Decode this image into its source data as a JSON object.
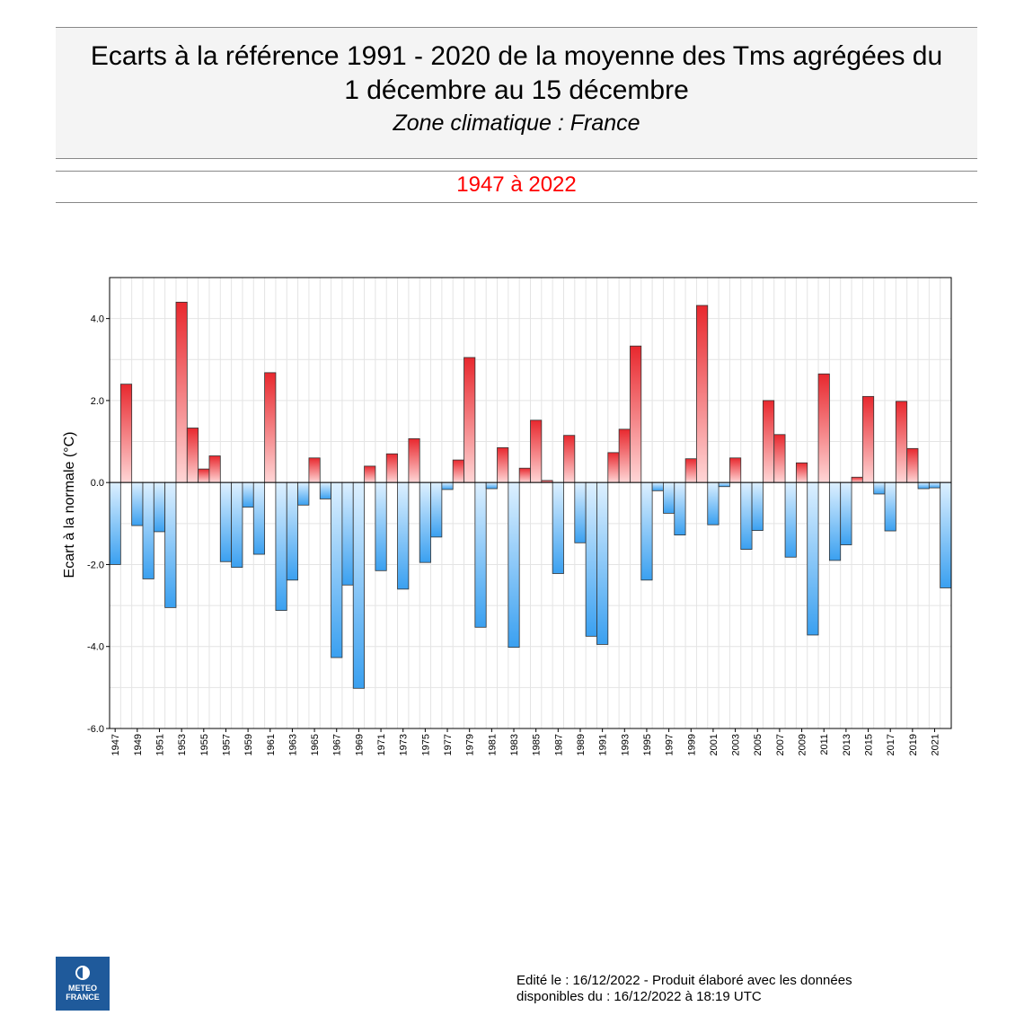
{
  "header": {
    "title_line1": "Ecarts à la référence 1991 - 2020 de la moyenne des Tms agrégées du",
    "title_line2": "1 décembre au 15 décembre",
    "subtitle": "Zone climatique : France",
    "period": "1947 à 2022"
  },
  "chart_data": {
    "type": "bar",
    "title": "Ecarts à la référence 1991 - 2020 de la moyenne des Tms agrégées du 1 décembre au 15 décembre",
    "ylabel": "Ecart à la normale (°C)",
    "xlabel": "",
    "ylim": [
      -6,
      5
    ],
    "yticks": [
      "4.0",
      "2.0",
      "0.0",
      "-2.0",
      "-4.0",
      "-6.0"
    ],
    "grid": true,
    "categories": [
      "1947",
      "1948",
      "1949",
      "1950",
      "1951",
      "1952",
      "1953",
      "1954",
      "1955",
      "1956",
      "1957",
      "1958",
      "1959",
      "1960",
      "1961",
      "1962",
      "1963",
      "1964",
      "1965",
      "1966",
      "1967",
      "1968",
      "1969",
      "1970",
      "1971",
      "1972",
      "1973",
      "1974",
      "1975",
      "1976",
      "1977",
      "1978",
      "1979",
      "1980",
      "1981",
      "1982",
      "1983",
      "1984",
      "1985",
      "1986",
      "1987",
      "1988",
      "1989",
      "1990",
      "1991",
      "1992",
      "1993",
      "1994",
      "1995",
      "1996",
      "1997",
      "1998",
      "1999",
      "2000",
      "2001",
      "2002",
      "2003",
      "2004",
      "2005",
      "2006",
      "2007",
      "2008",
      "2009",
      "2010",
      "2011",
      "2012",
      "2013",
      "2014",
      "2015",
      "2016",
      "2017",
      "2018",
      "2019",
      "2020",
      "2021",
      "2022"
    ],
    "xtick_labels": [
      "1947",
      "1949",
      "1951",
      "1953",
      "1955",
      "1957",
      "1959",
      "1961",
      "1963",
      "1965",
      "1967",
      "1969",
      "1971",
      "1973",
      "1975",
      "1977",
      "1979",
      "1981",
      "1983",
      "1985",
      "1987",
      "1989",
      "1991",
      "1993",
      "1995",
      "1997",
      "1999",
      "2001",
      "2003",
      "2005",
      "2007",
      "2009",
      "2011",
      "2013",
      "2015",
      "2017",
      "2019",
      "2021"
    ],
    "values": [
      -2.0,
      2.4,
      -1.05,
      -2.35,
      -1.2,
      -3.05,
      4.4,
      1.33,
      0.33,
      0.65,
      -1.93,
      -2.07,
      -0.6,
      -1.75,
      2.68,
      -3.12,
      -2.38,
      -0.55,
      0.6,
      -0.4,
      -4.27,
      -2.5,
      -5.02,
      0.4,
      -2.15,
      0.7,
      -2.6,
      1.07,
      -1.95,
      -1.33,
      -0.17,
      0.55,
      3.05,
      -3.53,
      -0.15,
      0.85,
      -4.02,
      0.35,
      1.52,
      0.05,
      -2.22,
      1.15,
      -1.47,
      -3.75,
      -3.95,
      0.73,
      1.3,
      3.33,
      -2.38,
      -0.2,
      -0.75,
      -1.28,
      0.58,
      4.32,
      -1.03,
      -0.1,
      0.6,
      -1.63,
      -1.17,
      2.0,
      1.17,
      -1.82,
      0.48,
      -3.72,
      2.65,
      -1.9,
      -1.52,
      0.13,
      2.1,
      -0.28,
      -1.18,
      1.98,
      0.83,
      -0.15,
      -0.13,
      -2.57
    ],
    "colors": {
      "positive": "#e8282e",
      "negative": "#3aa0f0",
      "positive_light": "#ffd6d6",
      "negative_light": "#ddf0ff"
    }
  },
  "logo": {
    "line1": "METEO",
    "line2": "FRANCE"
  },
  "footer": {
    "line1": "Edité le : 16/12/2022 - Produit élaboré avec les données",
    "line2": "disponibles du : 16/12/2022 à 18:19 UTC"
  }
}
